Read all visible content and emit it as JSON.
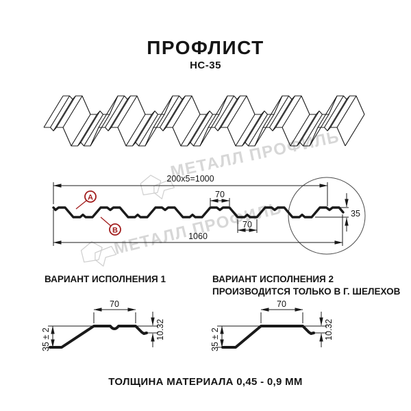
{
  "header": {
    "title": "ПРОФЛИСТ",
    "subtitle": "НС-35"
  },
  "watermark": {
    "text": "МЕТАЛЛ ПРОФИЛЬ"
  },
  "cross_section": {
    "dim_cover_width": "200x5=1000",
    "dim_total_width": "1060",
    "dim_top_flange": "70",
    "dim_bottom_flange": "70",
    "dim_height": "35",
    "label_top_face": "А",
    "label_bottom_face": "В"
  },
  "variant1": {
    "heading": "ВАРИАНТ ИСПОЛНЕНИЯ 1",
    "heading2": "",
    "dim_flange": "70",
    "dim_edge": "10.32",
    "dim_height": "35 ± 2"
  },
  "variant2": {
    "heading": "ВАРИАНТ ИСПОЛНЕНИЯ 2",
    "heading2": "ПРОИЗВОДИТСЯ ТОЛЬКО В Г. ШЕЛЕХОВ",
    "dim_flange": "70",
    "dim_edge": "10.32",
    "dim_height": "35 ± 2"
  },
  "footer": {
    "thickness": "ТОЛЩИНА МАТЕРИАЛА 0,45 - 0,9 ММ"
  },
  "colors": {
    "line": "#1a1a1a",
    "accent_red": "#a11c1c",
    "watermark": "#d7d7d7"
  }
}
